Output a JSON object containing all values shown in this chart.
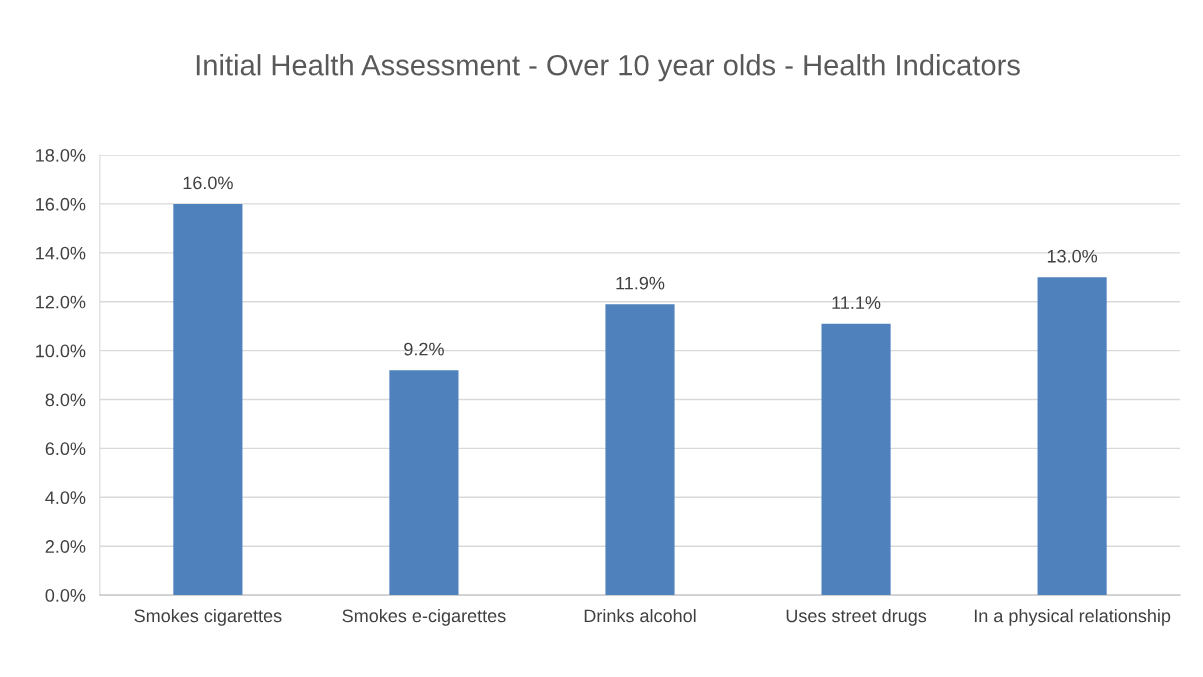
{
  "chart_data": {
    "type": "bar",
    "title": "Initial Health Assessment - Over 10 year olds - Health Indicators",
    "categories": [
      "Smokes cigarettes",
      "Smokes e-cigarettes",
      "Drinks alcohol",
      "Uses street drugs",
      "In a physical relationship"
    ],
    "values": [
      16.0,
      9.2,
      11.9,
      11.1,
      13.0
    ],
    "value_labels": [
      "16.0%",
      "9.2%",
      "11.9%",
      "11.1%",
      "13.0%"
    ],
    "color": "#4f81bd",
    "ylim": [
      0,
      18
    ],
    "yticks": [
      {
        "value": 0,
        "label": "0.0%"
      },
      {
        "value": 2,
        "label": "2.0%"
      },
      {
        "value": 4,
        "label": "4.0%"
      },
      {
        "value": 6,
        "label": "6.0%"
      },
      {
        "value": 8,
        "label": "8.0%"
      },
      {
        "value": 10,
        "label": "10.0%"
      },
      {
        "value": 12,
        "label": "12.0%"
      },
      {
        "value": 14,
        "label": "14.0%"
      },
      {
        "value": 16,
        "label": "16.0%"
      },
      {
        "value": 18,
        "label": "18.0%"
      }
    ],
    "grid": "y"
  }
}
